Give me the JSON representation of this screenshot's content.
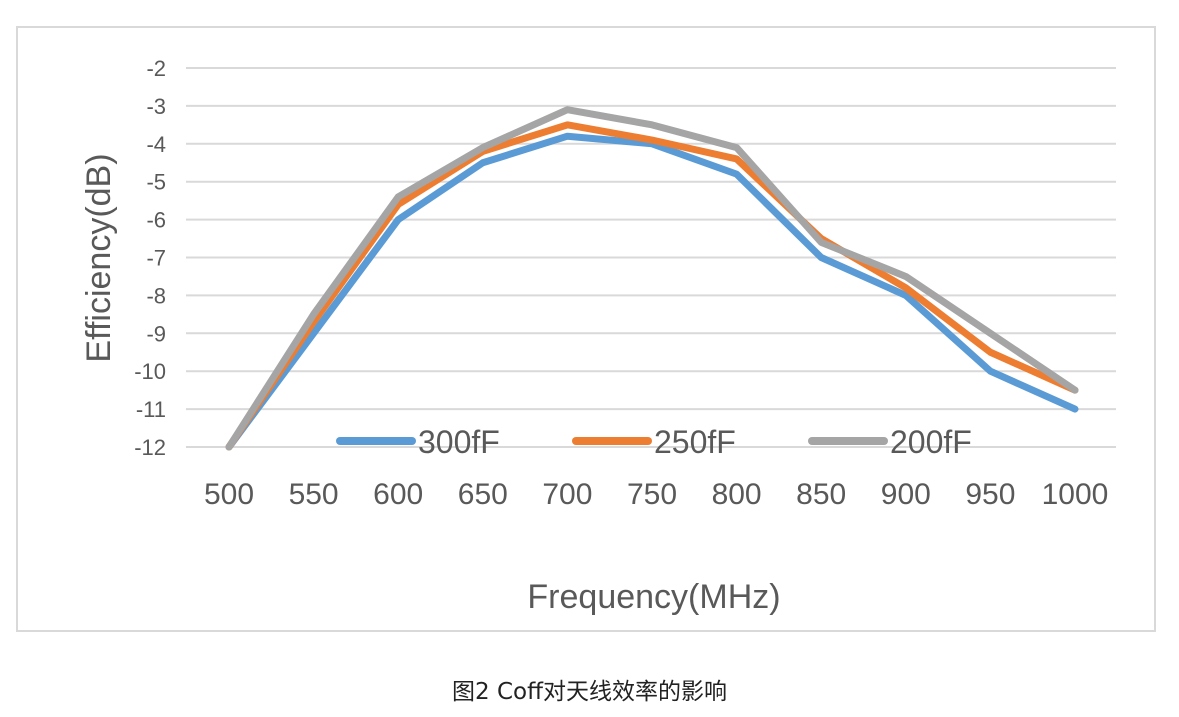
{
  "caption": "图2 Coff对天线效率的影响",
  "chart_data": {
    "type": "line",
    "xlabel": "Frequency(MHz)",
    "ylabel": "Efficiency(dB)",
    "x": [
      500,
      550,
      600,
      650,
      700,
      750,
      800,
      850,
      900,
      950,
      1000
    ],
    "x_tick_labels": [
      "500",
      "550",
      "600",
      "650",
      "700",
      "750",
      "800",
      "850",
      "900",
      "950",
      "1000"
    ],
    "ylim": [
      -12,
      -2
    ],
    "y_ticks": [
      -2,
      -3,
      -4,
      -5,
      -6,
      -7,
      -8,
      -9,
      -10,
      -11,
      -12
    ],
    "y_tick_labels": [
      "-2",
      "-3",
      "-4",
      "-5",
      "-6",
      "-7",
      "-8",
      "-9",
      "-10",
      "-11",
      "-12"
    ],
    "grid": true,
    "legend_position": "inside-bottom",
    "series": [
      {
        "name": "300fF",
        "color": "#5b9bd5",
        "values": [
          -12,
          -9.0,
          -6.0,
          -4.5,
          -3.8,
          -4.0,
          -4.8,
          -7.0,
          -8.0,
          -10.0,
          -11.0
        ]
      },
      {
        "name": "250fF",
        "color": "#ed7d31",
        "values": [
          -12,
          -8.7,
          -5.6,
          -4.2,
          -3.5,
          -3.9,
          -4.4,
          -6.5,
          -7.8,
          -9.5,
          -10.5
        ]
      },
      {
        "name": "200fF",
        "color": "#a5a5a5",
        "values": [
          -12,
          -8.5,
          -5.4,
          -4.1,
          -3.1,
          -3.5,
          -4.1,
          -6.6,
          -7.5,
          -9.0,
          -10.5
        ]
      }
    ]
  }
}
